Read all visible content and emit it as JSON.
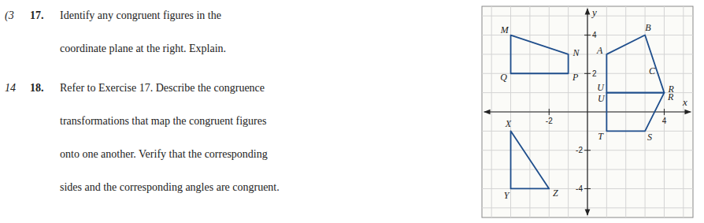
{
  "chart_data": {
    "type": "coordinate_plane",
    "annotations": [
      [
        "(3",
        "17.",
        "Identify any congruent figures in the",
        "coordinate plane at the right. Explain."
      ],
      [
        "14",
        "18.",
        "Refer to Exercise 17. Describe the congruence",
        "transformations that map the congruent figures",
        "onto one another. Verify that the corresponding",
        "sides and the corresponding angles are congruent."
      ]
    ],
    "xlabel": "x",
    "ylabel": "y",
    "xlim": [
      -5.5,
      5.5
    ],
    "ylim": [
      -5.5,
      5.5
    ],
    "xticks": [
      -2,
      4
    ],
    "yticks": [
      -4,
      -2,
      2,
      4
    ],
    "grid": true,
    "series": [
      {
        "type": "polygon",
        "labels": [
          "M",
          "N",
          "P",
          "Q"
        ],
        "x": [
          -4,
          -1,
          -1,
          -4
        ],
        "values": [
          4,
          3,
          2,
          2
        ]
      },
      {
        "type": "polygon",
        "labels": [
          "B",
          "A",
          "U",
          "R"
        ],
        "x": [
          3,
          1,
          1,
          4
        ],
        "values": [
          4,
          3,
          1,
          1
        ]
      },
      {
        "type": "point",
        "marker": "none",
        "labels": [
          "C"
        ],
        "x": [
          3
        ],
        "values": [
          2
        ]
      },
      {
        "type": "polygon",
        "labels": [
          "X",
          "Y",
          "Z"
        ],
        "x": [
          -4,
          -4,
          -2
        ],
        "values": [
          -1,
          -4,
          -4
        ]
      },
      {
        "type": "polygon",
        "labels": [
          "R",
          "S",
          "T",
          "U"
        ],
        "x": [
          4,
          3,
          1,
          1
        ],
        "values": [
          1,
          -1,
          -1,
          1
        ]
      }
    ]
  }
}
